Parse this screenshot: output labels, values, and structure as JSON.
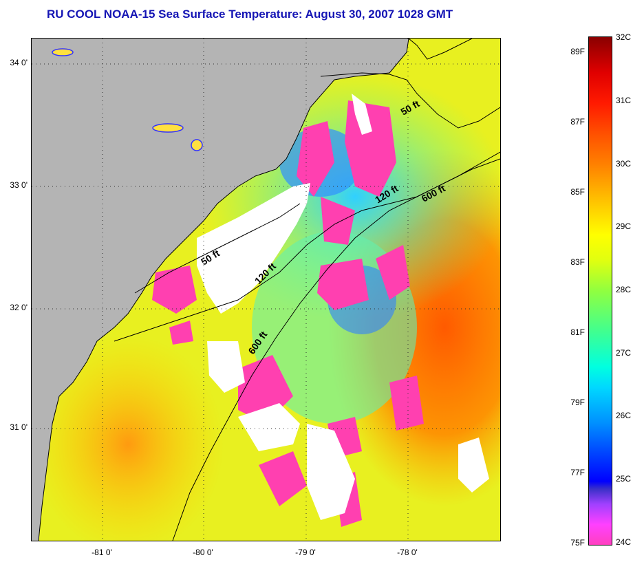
{
  "title": "RU COOL  NOAA-15  Sea Surface Temperature:  August 30, 2007 1028 GMT",
  "lat_labels": [
    "34 0'",
    "33 0'",
    "32 0'",
    "31 0'"
  ],
  "lon_labels": [
    "-81 0'",
    "-80 0'",
    "-79 0'",
    "-78 0'"
  ],
  "contours": {
    "c50": "50 ft",
    "c120": "120 ft",
    "c600": "600 ft"
  },
  "colorbar": {
    "fahrenheit": [
      "89F",
      "87F",
      "85F",
      "83F",
      "81F",
      "79F",
      "77F",
      "75F"
    ],
    "celsius": [
      "32C",
      "31C",
      "30C",
      "29C",
      "28C",
      "27C",
      "26C",
      "25C",
      "24C"
    ]
  },
  "colors": {
    "land": "#b4b4b4",
    "cloud": "#ffffff",
    "title": "#1414b4"
  }
}
